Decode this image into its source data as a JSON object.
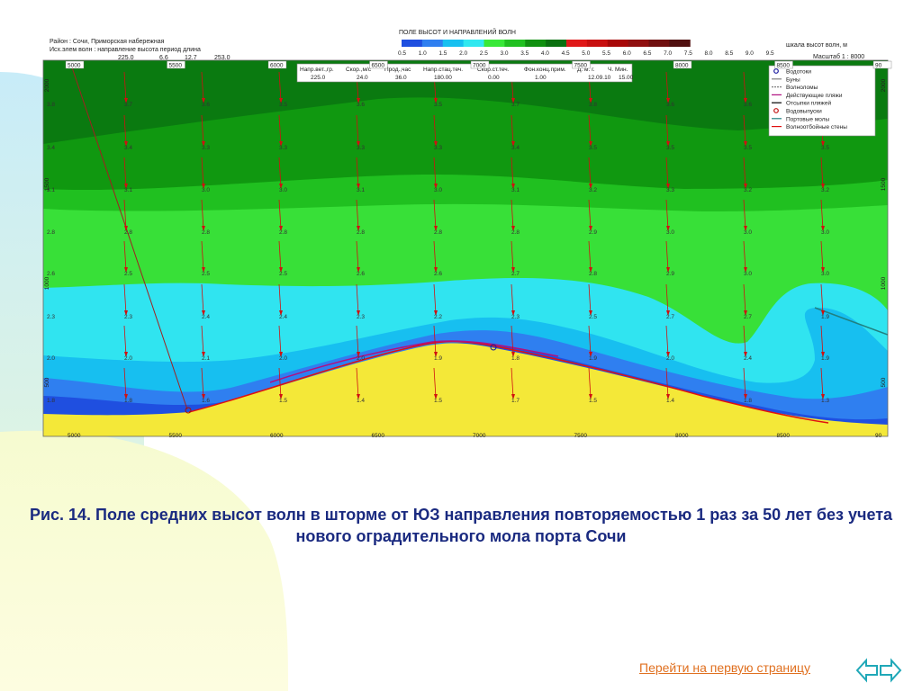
{
  "header": {
    "line1": "Район : Сочи, Приморская набережная",
    "line2": "Исх.элем волн :   направление    высота    период    длина",
    "values": [
      "225.0",
      "6.6",
      "12.7",
      "253.0"
    ]
  },
  "legend_title": "ПОЛЕ ВЫСОТ И НАПРАВЛЕНИЙ ВОЛН",
  "scale": {
    "colors": [
      "#1f4fe0",
      "#2f7ff0",
      "#17c0f0",
      "#30e8f0",
      "#38e838",
      "#20c020",
      "#109010",
      "#0a7010",
      "#e01818",
      "#c81010",
      "#a80808",
      "#901010",
      "#701010",
      "#501010"
    ],
    "labels": [
      "0.5",
      "1.0",
      "1.5",
      "2.0",
      "2.5",
      "3.0",
      "3.5",
      "4.0",
      "4.5",
      "5.0",
      "5.5",
      "6.0",
      "6.5",
      "7.0",
      "7.5",
      "8.0",
      "8.5",
      "9.0",
      "9.5"
    ],
    "caption": "шкала высот волн, м",
    "scale_text": "Масштаб 1 : 8000"
  },
  "params": {
    "headers": [
      "Напр.вет.,гр.",
      "Скор.,м/с",
      "Прод.,час",
      "Напр.стац.теч.",
      "Скор.ст.теч.",
      "Фон.конц.прим.",
      "Д.  м.  г.",
      "Ч. Мин."
    ],
    "values": [
      "225.0",
      "24.0",
      "36.0",
      "180.00",
      "0.00",
      "1.00",
      "12.09.10",
      "15.00"
    ]
  },
  "map_legend": [
    {
      "label": "Водотоки",
      "kind": "circle",
      "color": "#1a1aa0"
    },
    {
      "label": "Буны",
      "kind": "line",
      "color": "#808080"
    },
    {
      "label": "Волноломы",
      "kind": "dash",
      "color": "#808080"
    },
    {
      "label": "Действующие пляжи",
      "kind": "line",
      "color": "#b01080"
    },
    {
      "label": "Отсыпки пляжей",
      "kind": "line",
      "color": "#000000"
    },
    {
      "label": "Водовыпуски",
      "kind": "circle",
      "color": "#c01010"
    },
    {
      "label": "Портовые молы",
      "kind": "line",
      "color": "#208080"
    },
    {
      "label": "Волноотбойные стены",
      "kind": "line",
      "color": "#e01010"
    }
  ],
  "axes": {
    "x_ticks": [
      "5000",
      "5500",
      "6000",
      "6500",
      "7000",
      "7500",
      "8000",
      "8500",
      "90"
    ],
    "y_ticks": [
      "2000",
      "1500",
      "1000",
      "500"
    ]
  },
  "heights": [
    [
      "3.8",
      "3.7",
      "3.6",
      "3.5",
      "3.6",
      "3.5",
      "3.7",
      "3.8",
      "3.6",
      "3.6"
    ],
    [
      "3.4",
      "3.4",
      "3.3",
      "3.3",
      "3.3",
      "3.3",
      "3.4",
      "3.5",
      "3.5",
      "3.5",
      "3.5"
    ],
    [
      "3.1",
      "3.1",
      "3.0",
      "3.0",
      "3.1",
      "3.0",
      "3.1",
      "3.2",
      "3.3",
      "3.2",
      "3.2"
    ],
    [
      "2.8",
      "2.8",
      "2.8",
      "2.8",
      "2.8",
      "2.8",
      "2.8",
      "2.9",
      "3.0",
      "3.0",
      "3.0"
    ],
    [
      "2.6",
      "2.5",
      "2.5",
      "2.5",
      "2.6",
      "2.6",
      "2.7",
      "2.8",
      "2.9",
      "3.0",
      "3.0"
    ],
    [
      "2.3",
      "2.3",
      "2.4",
      "2.4",
      "2.3",
      "2.2",
      "2.3",
      "2.5",
      "2.7",
      "2.7",
      "1.9"
    ],
    [
      "2.0",
      "2.0",
      "2.1",
      "2.0",
      "2.0",
      "1.9",
      "1.8",
      "1.9",
      "2.0",
      "2.4",
      "1.9"
    ],
    [
      "1.8",
      "1.8",
      "1.6",
      "1.5",
      "1.4",
      "1.5",
      "1.7",
      "1.5",
      "1.4",
      "1.8",
      "1.3"
    ]
  ],
  "caption": "Рис. 14. Поле средних высот волн в шторме от ЮЗ направления повторяемостью 1 раз за 50 лет без учета нового оградительного мола порта Сочи",
  "nav": {
    "link_text": "Перейти на первую страницу"
  },
  "theme": {
    "caption_color": "#1a2a80",
    "link_color": "#e07020",
    "arrow_color": "#20a8b8"
  }
}
